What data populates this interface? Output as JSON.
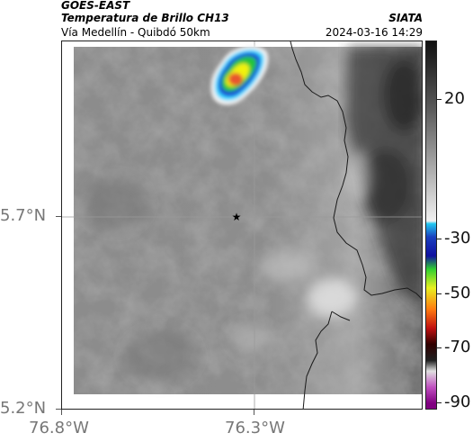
{
  "header": {
    "satellite": "GOES-EAST",
    "product": "Temperatura de Brillo CH13",
    "route": "Vía Medellín - Quibdó 50km",
    "source": "SIATA",
    "datetime": "2024-03-16 14:29"
  },
  "map": {
    "lat_ticks": [
      "5.7°N",
      "5.2°N"
    ],
    "lon_ticks": [
      "76.8°W",
      "76.3°W"
    ],
    "marker": "star-marker",
    "colors": {
      "cold_cloud_core": "#e8542e",
      "cloud_yellow": "#f2f20a",
      "cloud_green": "#22c43a",
      "cloud_blue": "#1e3bd6",
      "cloud_cyan": "#30d8ff",
      "land_gray": "#8a8a8a",
      "border_line": "#1a1a1a"
    }
  },
  "colorbar": {
    "labels": [
      "20",
      "-30",
      "-50",
      "-70",
      "-90"
    ],
    "stops": [
      {
        "value": 45,
        "color": "#111111"
      },
      {
        "value": 20,
        "color": "#5a5a5a"
      },
      {
        "value": -15,
        "color": "#d8d8d8"
      },
      {
        "value": -22,
        "color": "#f0f0f0"
      },
      {
        "value": -23,
        "color": "#22c8f0"
      },
      {
        "value": -28,
        "color": "#1a3fbf"
      },
      {
        "value": -35,
        "color": "#1010a0"
      },
      {
        "value": -40,
        "color": "#30d030"
      },
      {
        "value": -47,
        "color": "#e8f020"
      },
      {
        "value": -55,
        "color": "#ff7a10"
      },
      {
        "value": -62,
        "color": "#c01010"
      },
      {
        "value": -68,
        "color": "#300000"
      },
      {
        "value": -74,
        "color": "#202020"
      },
      {
        "value": -78,
        "color": "#e0e0e0"
      },
      {
        "value": -84,
        "color": "#c050c0"
      },
      {
        "value": -90,
        "color": "#800080"
      }
    ],
    "range": [
      -92,
      45
    ]
  }
}
